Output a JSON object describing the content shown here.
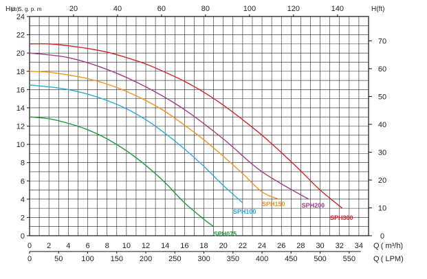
{
  "chart_data": {
    "type": "line",
    "left_axis": {
      "label_prefix": "H",
      "label_unit": "(m)",
      "ticks": [
        "0",
        "2",
        "4",
        "6",
        "8",
        "10",
        "12",
        "14",
        "16",
        "18",
        "20",
        "22",
        "24"
      ],
      "range": [
        0,
        24
      ]
    },
    "right_axis": {
      "label": "H(ft)",
      "ticks": [
        "0",
        "10",
        "20",
        "30",
        "40",
        "50",
        "60",
        "70"
      ]
    },
    "top_axis": {
      "label": "U. S. g. p. m",
      "ticks": [
        "20",
        "40",
        "60",
        "80",
        "100",
        "120",
        "140"
      ]
    },
    "bottom_axis_m3h": {
      "label": "Q ( m³/h)",
      "ticks": [
        "0",
        "2",
        "4",
        "6",
        "8",
        "10",
        "12",
        "14",
        "16",
        "18",
        "20",
        "22",
        "24",
        "26",
        "28",
        "30",
        "32",
        "34"
      ],
      "range": [
        0,
        35
      ]
    },
    "bottom_axis_lpm": {
      "label": "Q ( LPM)",
      "ticks": [
        "0",
        "50",
        "100",
        "150",
        "200",
        "250",
        "300",
        "350",
        "400",
        "450",
        "500",
        "550"
      ]
    },
    "grid": true,
    "series": [
      {
        "name": "SPH075",
        "color": "#1e9a3c",
        "x": [
          0,
          2,
          4,
          6,
          8,
          10,
          12,
          14,
          16,
          18,
          19
        ],
        "y": [
          13.0,
          12.8,
          12.3,
          11.6,
          10.6,
          9.3,
          7.7,
          5.8,
          3.6,
          1.8,
          1.0
        ]
      },
      {
        "name": "SPH100",
        "color": "#2aa9df",
        "x": [
          0,
          2,
          4,
          6,
          8,
          10,
          12,
          14,
          16,
          18,
          20,
          22
        ],
        "y": [
          16.5,
          16.3,
          16.0,
          15.5,
          14.8,
          13.9,
          12.7,
          11.2,
          9.5,
          7.6,
          5.5,
          3.6
        ]
      },
      {
        "name": "SPH150",
        "color": "#f0921e",
        "x": [
          0,
          2,
          4,
          6,
          8,
          10,
          12,
          14,
          16,
          18,
          20,
          22,
          24,
          25.7
        ],
        "y": [
          18.0,
          17.9,
          17.6,
          17.2,
          16.6,
          15.8,
          14.8,
          13.6,
          12.1,
          10.5,
          8.7,
          6.8,
          4.8,
          4.0
        ]
      },
      {
        "name": "SPH200",
        "color": "#a13a86",
        "x": [
          0,
          4,
          8,
          12,
          16,
          20,
          24,
          28.8
        ],
        "y": [
          20.0,
          19.5,
          18.2,
          16.3,
          13.8,
          10.6,
          7.0,
          4.0
        ]
      },
      {
        "name": "SPH300",
        "color": "#d2232a",
        "x": [
          0,
          2,
          4,
          6,
          8,
          10,
          12,
          14,
          16,
          18,
          20,
          22,
          24,
          26,
          28,
          30,
          32.3
        ],
        "y": [
          21.0,
          21.0,
          20.8,
          20.5,
          20.1,
          19.5,
          18.8,
          17.9,
          16.9,
          15.7,
          14.3,
          12.7,
          11.0,
          9.1,
          7.1,
          5.0,
          3.0
        ]
      }
    ]
  }
}
